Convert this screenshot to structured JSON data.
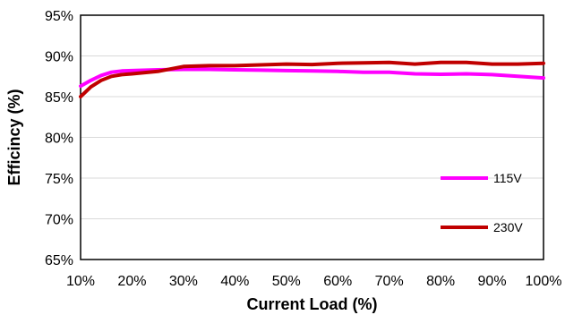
{
  "chart_data": {
    "type": "line",
    "title": "",
    "xlabel": "Current Load (%)",
    "ylabel": "Efficincy (%)",
    "xlim": [
      10,
      100
    ],
    "ylim": [
      65,
      95
    ],
    "x_ticks": [
      10,
      20,
      30,
      40,
      50,
      60,
      70,
      80,
      90,
      100
    ],
    "y_ticks": [
      65,
      70,
      75,
      80,
      85,
      90,
      95
    ],
    "x_tick_labels": [
      "10%",
      "20%",
      "30%",
      "40%",
      "50%",
      "60%",
      "70%",
      "80%",
      "90%",
      "100%"
    ],
    "y_tick_labels": [
      "65%",
      "70%",
      "75%",
      "80%",
      "85%",
      "90%",
      "95%"
    ],
    "grid": "horizontal",
    "legend_position": "right",
    "series": [
      {
        "name": "115V",
        "color": "#ff00ff",
        "x": [
          10,
          12,
          14,
          16,
          18,
          20,
          25,
          30,
          35,
          40,
          45,
          50,
          55,
          60,
          65,
          70,
          75,
          80,
          85,
          90,
          95,
          100
        ],
        "y": [
          86.3,
          87.0,
          87.6,
          88.0,
          88.15,
          88.2,
          88.3,
          88.35,
          88.35,
          88.3,
          88.25,
          88.2,
          88.15,
          88.1,
          88.0,
          88.0,
          87.8,
          87.75,
          87.8,
          87.7,
          87.5,
          87.3
        ]
      },
      {
        "name": "230V",
        "color": "#c00000",
        "x": [
          10,
          12,
          14,
          16,
          18,
          20,
          25,
          30,
          35,
          40,
          45,
          50,
          55,
          60,
          65,
          70,
          75,
          80,
          85,
          90,
          95,
          100
        ],
        "y": [
          85.0,
          86.2,
          87.0,
          87.5,
          87.7,
          87.8,
          88.1,
          88.7,
          88.8,
          88.8,
          88.9,
          89.0,
          88.95,
          89.1,
          89.15,
          89.2,
          89.0,
          89.2,
          89.2,
          89.0,
          89.0,
          89.1
        ]
      }
    ]
  }
}
